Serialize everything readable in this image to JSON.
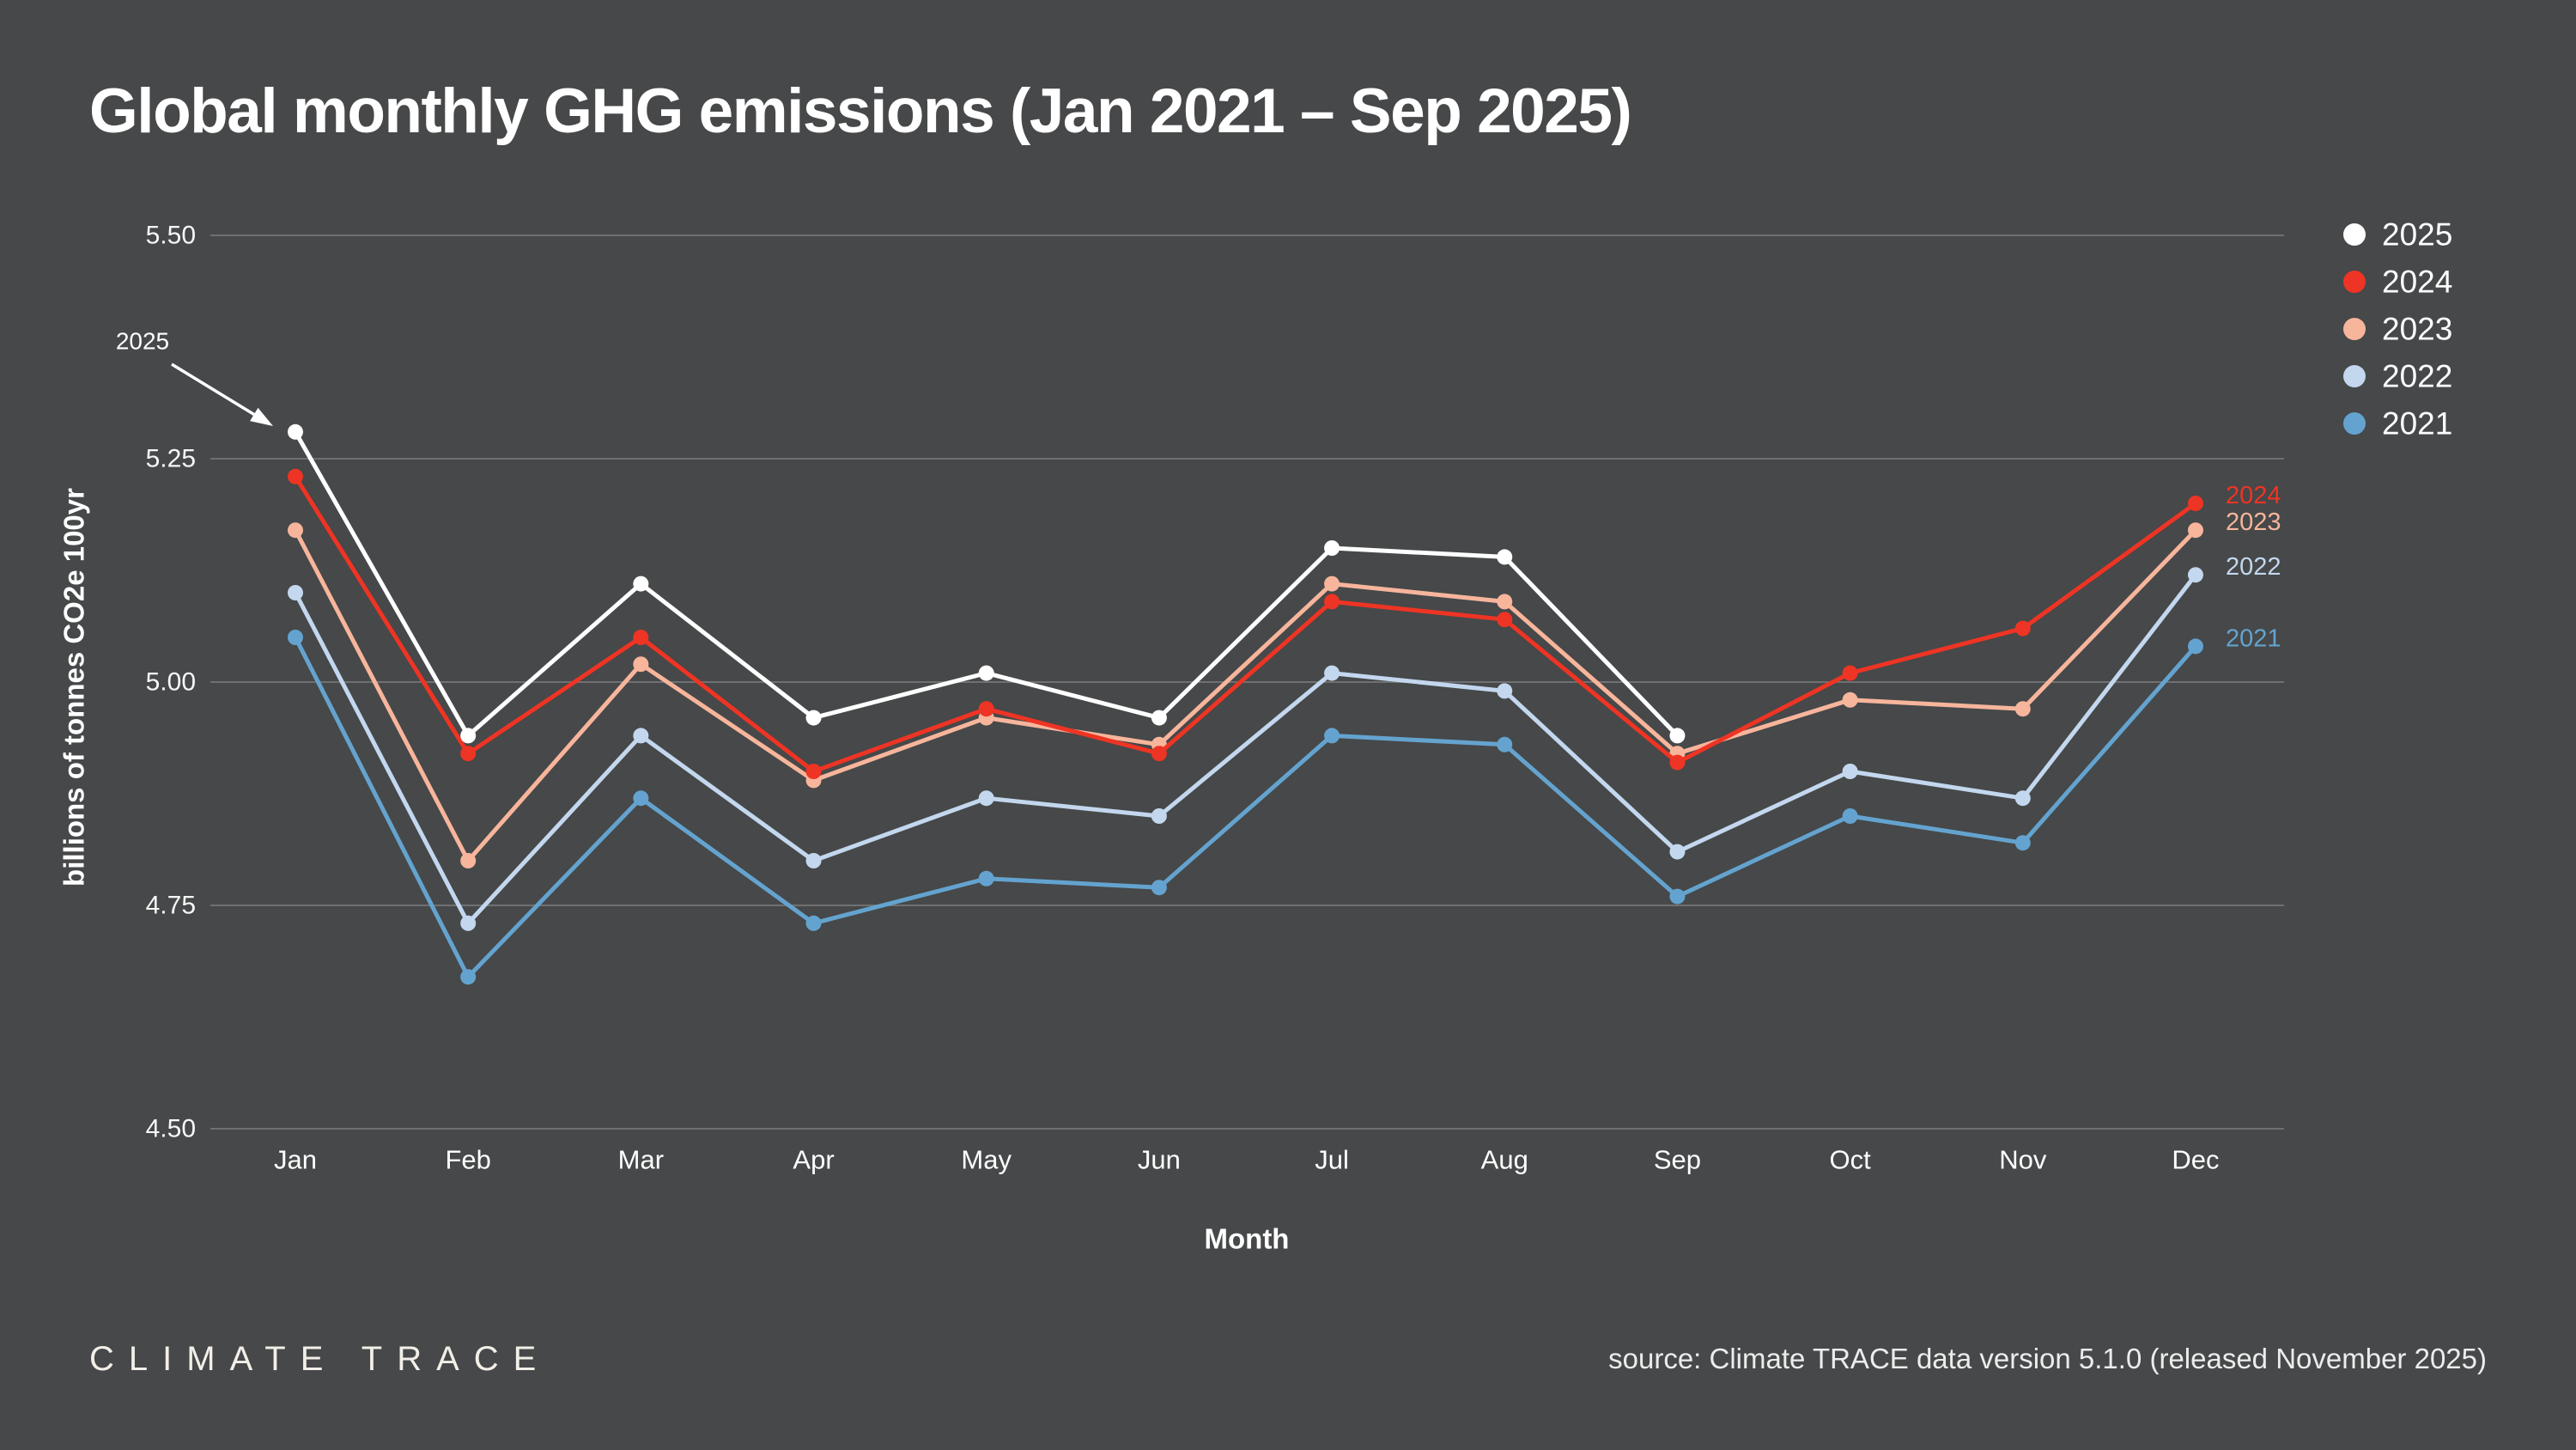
{
  "page": {
    "background": "#464849",
    "text_color": "#ffffff"
  },
  "header": {
    "title": "Global monthly GHG emissions (Jan 2021 – Sep 2025)"
  },
  "chart_data": {
    "type": "line",
    "title": "Global monthly GHG emissions (Jan 2021 – Sep 2025)",
    "xlabel": "Month",
    "ylabel": "billions of tonnes CO2e 100yr",
    "ylim": [
      4.5,
      5.5
    ],
    "yticks": [
      "5.50",
      "5.25",
      "5.00",
      "4.75",
      "4.50"
    ],
    "grid": "horizontal",
    "legend_position": "top-right",
    "categories": [
      "Jan",
      "Feb",
      "Mar",
      "Apr",
      "May",
      "Jun",
      "Jul",
      "Aug",
      "Sep",
      "Oct",
      "Nov",
      "Dec"
    ],
    "series": [
      {
        "name": "2021",
        "color": "#64a3cf",
        "end_label": "2021",
        "values": [
          5.05,
          4.67,
          4.87,
          4.73,
          4.78,
          4.77,
          4.94,
          4.93,
          4.76,
          4.85,
          4.82,
          5.04
        ]
      },
      {
        "name": "2022",
        "color": "#c3d7ee",
        "end_label": "2022",
        "values": [
          5.1,
          4.73,
          4.94,
          4.8,
          4.87,
          4.85,
          5.01,
          4.99,
          4.81,
          4.9,
          4.87,
          5.12
        ]
      },
      {
        "name": "2023",
        "color": "#f7b59c",
        "end_label": "2023",
        "values": [
          5.17,
          4.8,
          5.02,
          4.89,
          4.96,
          4.93,
          5.11,
          5.09,
          4.92,
          4.98,
          4.97,
          5.17
        ]
      },
      {
        "name": "2024",
        "color": "#ee3424",
        "end_label": "2024",
        "values": [
          5.23,
          4.92,
          5.05,
          4.9,
          4.97,
          4.92,
          5.09,
          5.07,
          4.91,
          5.01,
          5.06,
          5.2
        ]
      },
      {
        "name": "2025",
        "color": "#ffffff",
        "end_label": null,
        "values": [
          5.28,
          4.94,
          5.11,
          4.96,
          5.01,
          4.96,
          5.15,
          5.14,
          4.94,
          null,
          null,
          null
        ]
      }
    ],
    "legend": [
      "2025",
      "2024",
      "2023",
      "2022",
      "2021"
    ],
    "annotation": {
      "text": "2025"
    }
  },
  "footer": {
    "logo": "CLIMATE TRACE",
    "source": "source: Climate TRACE data version 5.1.0 (released November 2025)"
  }
}
